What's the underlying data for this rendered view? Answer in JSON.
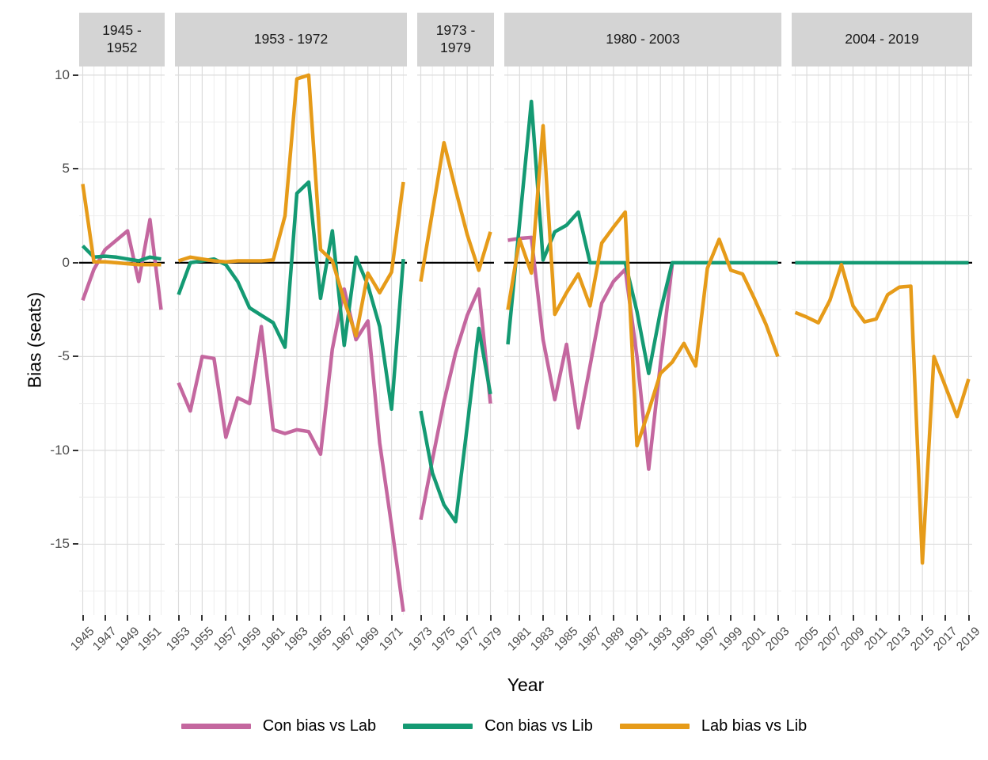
{
  "chart_data": {
    "type": "line",
    "title": "",
    "xlabel": "Year",
    "ylabel": "Bias (seats)",
    "ylim": [
      -18.78,
      10.46
    ],
    "yticks": [
      10,
      5,
      0,
      -5,
      -10,
      -15
    ],
    "yminor": [
      7.5,
      2.5,
      -2.5,
      -7.5,
      -12.5,
      -17.5
    ],
    "zero_line": true,
    "grid": "on",
    "legend_position": "bottom",
    "legend": [
      {
        "name": "Con bias vs Lab",
        "color": "#C4679F"
      },
      {
        "name": "Con bias vs Lib",
        "color": "#149A73"
      },
      {
        "name": "Lab bias vs Lib",
        "color": "#E69B19"
      }
    ],
    "facets": [
      {
        "label": "1945 - 1952",
        "years": [
          1945,
          1946,
          1947,
          1948,
          1949,
          1950,
          1951,
          1952
        ],
        "series": [
          {
            "name": "Con bias vs Lab",
            "values": [
              -2.0,
              -0.35,
              0.7,
              1.2,
              1.7,
              -1.0,
              2.3,
              -2.5
            ]
          },
          {
            "name": "Con bias vs Lib",
            "values": [
              0.9,
              0.3,
              0.35,
              0.3,
              0.2,
              0.1,
              0.3,
              0.2
            ]
          },
          {
            "name": "Lab bias vs Lib",
            "values": [
              4.2,
              0.05,
              0.05,
              0.0,
              -0.05,
              -0.1,
              -0.1,
              -0.1
            ]
          }
        ]
      },
      {
        "label": "1953 - 1972",
        "years": [
          1953,
          1954,
          1955,
          1956,
          1957,
          1958,
          1959,
          1960,
          1961,
          1962,
          1963,
          1964,
          1965,
          1966,
          1967,
          1968,
          1969,
          1970,
          1971,
          1972
        ],
        "series": [
          {
            "name": "Con bias vs Lab",
            "values": [
              -6.4,
              -7.9,
              -5.0,
              -5.1,
              -9.3,
              -7.2,
              -7.5,
              -3.4,
              -8.9,
              -9.1,
              -8.9,
              -9.0,
              -10.2,
              -4.6,
              -1.4,
              -4.1,
              -3.1,
              -9.6,
              -14.0,
              -18.6
            ]
          },
          {
            "name": "Con bias vs Lib",
            "values": [
              -1.7,
              0.0,
              0.1,
              0.2,
              -0.1,
              -1.0,
              -2.4,
              -2.8,
              -3.2,
              -4.5,
              3.7,
              4.3,
              -1.9,
              1.7,
              -4.4,
              0.3,
              -1.2,
              -3.4,
              -7.8,
              0.2
            ]
          },
          {
            "name": "Lab bias vs Lib",
            "values": [
              0.1,
              0.3,
              0.2,
              0.1,
              0.05,
              0.1,
              0.1,
              0.1,
              0.15,
              2.5,
              9.8,
              10.0,
              0.7,
              0.1,
              -2.0,
              -3.9,
              -0.55,
              -1.6,
              -0.5,
              4.3
            ]
          }
        ]
      },
      {
        "label": "1973 - 1979",
        "years": [
          1973,
          1974,
          1975,
          1976,
          1977,
          1978,
          1979
        ],
        "series": [
          {
            "name": "Con bias vs Lab",
            "values": [
              -13.7,
              -10.5,
              -7.4,
              -4.8,
              -2.8,
              -1.4,
              -7.5
            ]
          },
          {
            "name": "Con bias vs Lib",
            "values": [
              -7.9,
              -11.2,
              -12.9,
              -13.8,
              -8.7,
              -3.5,
              -7.0
            ]
          },
          {
            "name": "Lab bias vs Lib",
            "values": [
              -1.0,
              2.7,
              6.4,
              3.9,
              1.5,
              -0.4,
              1.65
            ]
          }
        ]
      },
      {
        "label": "1980 - 2003",
        "years": [
          1980,
          1981,
          1982,
          1983,
          1984,
          1985,
          1986,
          1987,
          1988,
          1989,
          1990,
          1991,
          1992,
          1993,
          1994,
          1995,
          1996,
          1997,
          1998,
          1999,
          2000,
          2001,
          2002,
          2003
        ],
        "series": [
          {
            "name": "Con bias vs Lab",
            "values": [
              1.2,
              1.3,
              1.35,
              -4.1,
              -7.3,
              -4.35,
              -8.8,
              -5.5,
              -2.15,
              -1.0,
              -0.35,
              -5.0,
              -11.0,
              -5.4,
              -0.1,
              null,
              null,
              null,
              null,
              null,
              null,
              null,
              null,
              null
            ]
          },
          {
            "name": "Con bias vs Lib",
            "values": [
              -4.35,
              2.1,
              8.6,
              0.15,
              1.65,
              2.0,
              2.7,
              0.0,
              0.0,
              0.0,
              0.0,
              -2.6,
              -5.9,
              -2.6,
              0.0,
              0.0,
              0.0,
              0.0,
              0.0,
              0.0,
              0.0,
              0.0,
              0.0,
              0.0
            ]
          },
          {
            "name": "Lab bias vs Lib",
            "values": [
              -2.5,
              1.25,
              -0.55,
              7.3,
              -2.75,
              -1.6,
              -0.6,
              -2.3,
              1.05,
              1.9,
              2.7,
              -9.75,
              -7.9,
              -5.9,
              -5.3,
              -4.3,
              -5.5,
              -0.3,
              1.25,
              -0.4,
              -0.6,
              -1.9,
              -3.3,
              -5.0
            ]
          }
        ]
      },
      {
        "label": "2004 - 2019",
        "years": [
          2004,
          2005,
          2006,
          2007,
          2008,
          2009,
          2010,
          2011,
          2012,
          2013,
          2014,
          2015,
          2016,
          2017,
          2018,
          2019
        ],
        "series": [
          {
            "name": "Con bias vs Lab",
            "values": [
              null,
              null,
              null,
              null,
              null,
              null,
              null,
              null,
              null,
              null,
              null,
              null,
              null,
              null,
              null,
              null
            ]
          },
          {
            "name": "Con bias vs Lib",
            "values": [
              0.0,
              0.0,
              0.0,
              0.0,
              0.0,
              0.0,
              0.0,
              0.0,
              0.0,
              0.0,
              0.0,
              0.0,
              0.0,
              0.0,
              0.0,
              0.0
            ]
          },
          {
            "name": "Lab bias vs Lib",
            "values": [
              -2.65,
              -2.9,
              -3.2,
              -2.0,
              -0.1,
              -2.3,
              -3.15,
              -3.0,
              -1.7,
              -1.3,
              -1.25,
              -16.0,
              -5.0,
              -6.6,
              -8.2,
              -6.2
            ]
          }
        ]
      }
    ]
  }
}
